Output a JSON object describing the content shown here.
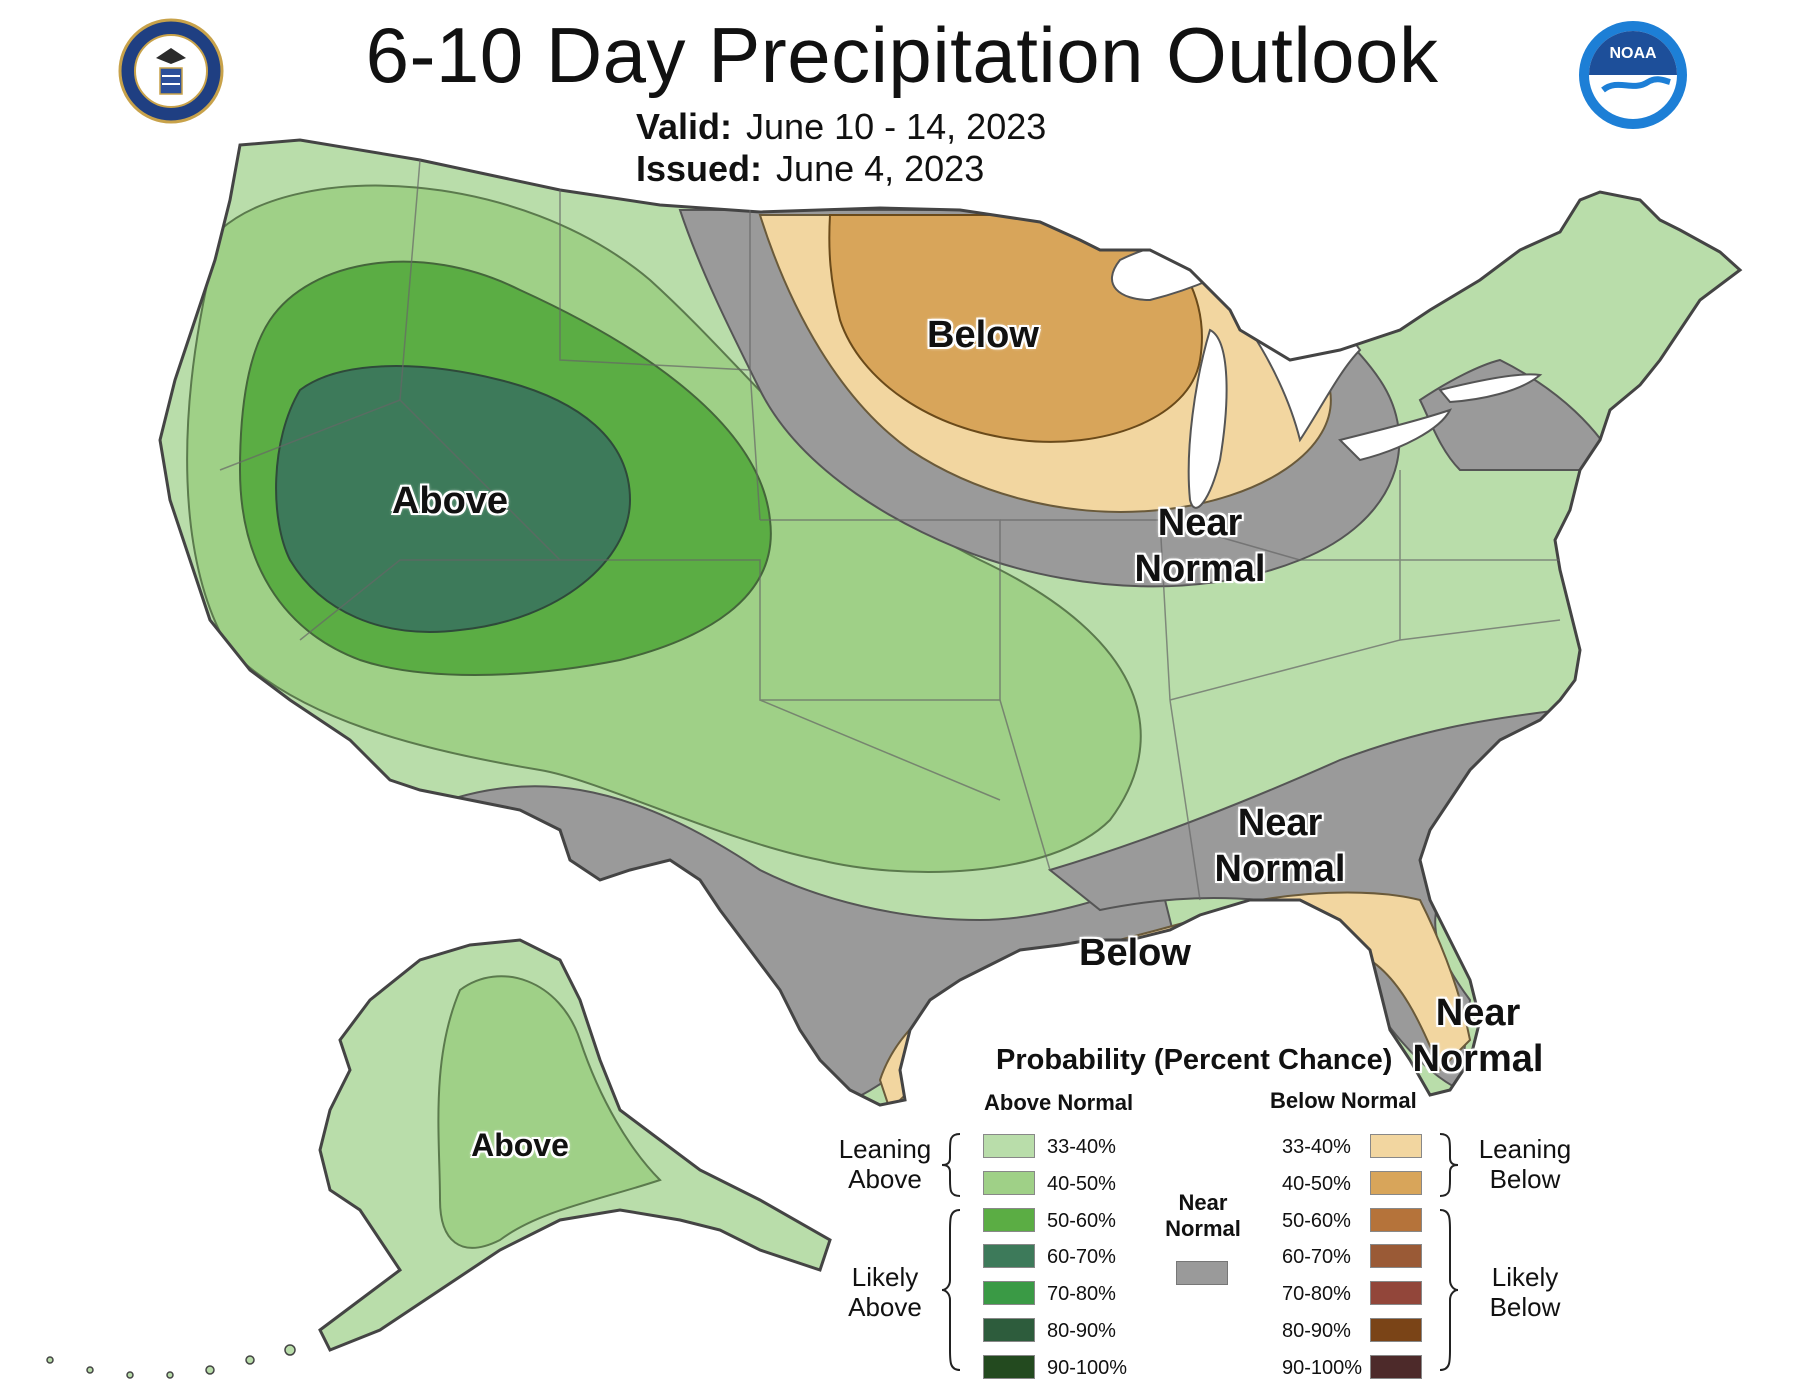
{
  "header": {
    "title": "6-10 Day Precipitation Outlook",
    "valid_label": "Valid:",
    "valid_value": "June 10 - 14, 2023",
    "issued_label": "Issued:",
    "issued_value": "June 4, 2023"
  },
  "logos": {
    "commerce_seal": "Department of Commerce seal",
    "noaa_logo": "NOAA"
  },
  "map_labels": {
    "above_west": "Above",
    "below_north": "Below",
    "near_normal_midwest": "Near Normal",
    "near_normal_southeast": "Near Normal",
    "below_gulf": "Below",
    "near_normal_florida": "Near Normal",
    "above_alaska": "Above"
  },
  "colors": {
    "above_33_40": "#b9ddaa",
    "above_40_50": "#9fd087",
    "above_50_60": "#5bad44",
    "above_60_70": "#3d7a5a",
    "above_70_80": "#3a9a45",
    "above_80_90": "#2d5c3c",
    "above_90_100": "#234a1f",
    "below_33_40": "#f2d6a0",
    "below_40_50": "#d8a55a",
    "below_50_60": "#b5733a",
    "below_60_70": "#9a5a36",
    "below_70_80": "#92463a",
    "below_80_90": "#7a4417",
    "below_90_100": "#4d2a2a",
    "near_normal": "#9a9a9a",
    "lakes": "#ffffff",
    "borders": "#555555"
  },
  "legend": {
    "title": "Probability (Percent Chance)",
    "above_header": "Above Normal",
    "below_header": "Below Normal",
    "near_header": "Near Normal",
    "leaning_above": "Leaning Above",
    "likely_above": "Likely Above",
    "leaning_below": "Leaning Below",
    "likely_below": "Likely Below",
    "above_rows": [
      {
        "label": "33-40%",
        "color": "#b9ddaa"
      },
      {
        "label": "40-50%",
        "color": "#9fd087"
      },
      {
        "label": "50-60%",
        "color": "#5bad44"
      },
      {
        "label": "60-70%",
        "color": "#3d7a5a"
      },
      {
        "label": "70-80%",
        "color": "#3a9a45"
      },
      {
        "label": "80-90%",
        "color": "#2d5c3c"
      },
      {
        "label": "90-100%",
        "color": "#234a1f"
      }
    ],
    "below_rows": [
      {
        "label": "33-40%",
        "color": "#f2d6a0"
      },
      {
        "label": "40-50%",
        "color": "#d8a55a"
      },
      {
        "label": "50-60%",
        "color": "#b5733a"
      },
      {
        "label": "60-70%",
        "color": "#9a5a36"
      },
      {
        "label": "70-80%",
        "color": "#92463a"
      },
      {
        "label": "80-90%",
        "color": "#7a4417"
      },
      {
        "label": "90-100%",
        "color": "#4d2a2a"
      }
    ]
  }
}
